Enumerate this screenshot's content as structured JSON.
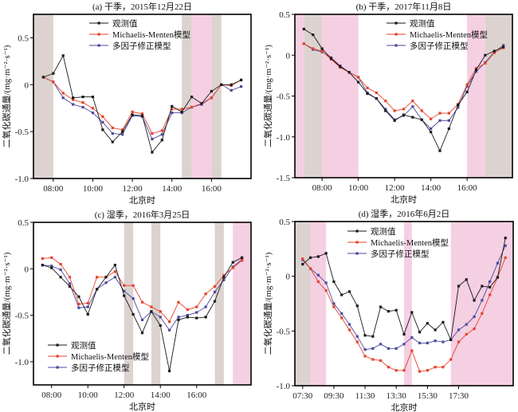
{
  "figure": {
    "y_axis_label": "二氧化碳通量/(mg·m⁻²·s⁻¹)",
    "x_axis_label": "北京时"
  },
  "colors": {
    "observed": "#1a1a1a",
    "mm_model": "#e5432b",
    "multi_model": "#4b4a9c",
    "shade_gray": "#dcd3d0",
    "shade_pink": "#f5cfe2"
  },
  "chart_data": [
    {
      "type": "line",
      "title": "(a) 干季，2015年12月22日",
      "xlabel": "北京时",
      "ylabel": "二氧化碳通量/(mg·m⁻²·s⁻¹)",
      "xlim_hours": [
        7.0,
        18.0
      ],
      "ylim": [
        -1.0,
        0.75
      ],
      "yticks": [
        -1.0,
        -0.5,
        0,
        0.5
      ],
      "ytick_labels": [
        "-1.0",
        "-0.5",
        "0",
        "0.5"
      ],
      "xticks_hours": [
        8,
        10,
        12,
        14,
        16
      ],
      "xtick_labels": [
        "08:00",
        "10:00",
        "12:00",
        "14:00",
        "16:00"
      ],
      "legend_position": "top-center",
      "shading": [
        {
          "from": 7.0,
          "to": 8.0,
          "kind": "gray"
        },
        {
          "from": 14.5,
          "to": 15.0,
          "kind": "gray"
        },
        {
          "from": 15.0,
          "to": 16.0,
          "kind": "pink"
        },
        {
          "from": 16.0,
          "to": 16.5,
          "kind": "gray"
        }
      ],
      "x_hours_start": 7.5,
      "x_step_hours": 0.5,
      "series": [
        {
          "name": "观测值",
          "key": "observed",
          "values": [
            0.08,
            0.12,
            0.31,
            -0.14,
            -0.13,
            -0.13,
            -0.48,
            -0.61,
            -0.5,
            -0.32,
            -0.33,
            -0.72,
            -0.59,
            -0.23,
            -0.29,
            -0.13,
            -0.2,
            -0.07,
            0.0,
            0.0,
            0.05
          ]
        },
        {
          "name": "Michaelis-Menten模型",
          "key": "mm_model",
          "values": [
            0.08,
            0.03,
            -0.09,
            -0.16,
            -0.19,
            -0.25,
            -0.34,
            -0.46,
            -0.48,
            -0.29,
            -0.31,
            -0.52,
            -0.49,
            -0.26,
            -0.26,
            -0.24,
            -0.2,
            -0.14,
            0.0,
            -0.01,
            0.05
          ]
        },
        {
          "name": "多因子修正模型",
          "key": "multi_model",
          "values": [
            0.08,
            0.03,
            -0.14,
            -0.21,
            -0.24,
            -0.3,
            -0.4,
            -0.52,
            -0.53,
            -0.33,
            -0.34,
            -0.58,
            -0.53,
            -0.3,
            -0.3,
            -0.24,
            -0.21,
            -0.14,
            0.0,
            -0.06,
            -0.02
          ]
        }
      ]
    },
    {
      "type": "line",
      "title": "(b) 干季，2017年11月8日",
      "xlabel": "北京时",
      "ylabel": "二氧化碳通量/(mg·m⁻²·s⁻¹)",
      "xlim_hours": [
        6.5,
        18.5
      ],
      "ylim": [
        -1.5,
        0.5
      ],
      "yticks": [
        -1.5,
        -1.0,
        -0.5,
        0,
        0.5
      ],
      "ytick_labels": [
        "-1.5",
        "-1.0",
        "-0.5",
        "0",
        "0.5"
      ],
      "xticks_hours": [
        8,
        10,
        12,
        14,
        16
      ],
      "xtick_labels": [
        "08:00",
        "10:00",
        "12:00",
        "14:00",
        "16:00"
      ],
      "legend_position": "top-center",
      "shading": [
        {
          "from": 6.5,
          "to": 7.0,
          "kind": "pink"
        },
        {
          "from": 7.0,
          "to": 8.0,
          "kind": "gray"
        },
        {
          "from": 8.0,
          "to": 10.0,
          "kind": "pink"
        },
        {
          "from": 16.0,
          "to": 17.0,
          "kind": "pink"
        },
        {
          "from": 17.0,
          "to": 18.5,
          "kind": "gray"
        }
      ],
      "x_hours_start": 7.0,
      "x_step_hours": 0.5,
      "series": [
        {
          "name": "观测值",
          "key": "observed",
          "values": [
            0.32,
            0.25,
            0.08,
            -0.04,
            -0.14,
            -0.21,
            -0.33,
            -0.47,
            -0.53,
            -0.68,
            -0.8,
            -0.73,
            -0.76,
            -0.79,
            -0.94,
            -1.17,
            -0.9,
            -0.61,
            -0.45,
            -0.18,
            0.0,
            0.05,
            0.1
          ]
        },
        {
          "name": "Michaelis-Menten模型",
          "key": "mm_model",
          "values": [
            0.14,
            0.08,
            0.05,
            -0.05,
            -0.15,
            -0.21,
            -0.27,
            -0.4,
            -0.46,
            -0.56,
            -0.68,
            -0.66,
            -0.56,
            -0.68,
            -0.78,
            -0.71,
            -0.71,
            -0.6,
            -0.36,
            -0.16,
            -0.1,
            0.03,
            0.09
          ]
        },
        {
          "name": "多因子修正模型",
          "key": "multi_model",
          "values": [
            0.14,
            0.07,
            0.04,
            -0.03,
            -0.13,
            -0.21,
            -0.27,
            -0.46,
            -0.53,
            -0.66,
            -0.79,
            -0.74,
            -0.63,
            -0.79,
            -0.9,
            -0.8,
            -0.8,
            -0.64,
            -0.38,
            -0.2,
            -0.09,
            0.04,
            0.12
          ]
        }
      ]
    },
    {
      "type": "line",
      "title": "(c) 湿季，2016年3月25日",
      "xlabel": "北京时",
      "ylabel": "二氧化碳通量/(mg·m⁻²·s⁻¹)",
      "xlim_hours": [
        7.0,
        19.0
      ],
      "ylim": [
        -1.25,
        0.5
      ],
      "yticks": [
        -1.0,
        -0.5,
        0,
        0.5
      ],
      "ytick_labels": [
        "-1.0",
        "-0.5",
        "0",
        "0.5"
      ],
      "xticks_hours": [
        8,
        10,
        12,
        14,
        16
      ],
      "xtick_labels": [
        "08:00",
        "10:00",
        "12:00",
        "14:00",
        "16:00"
      ],
      "legend_position": "bottom-left",
      "shading": [
        {
          "from": 12.0,
          "to": 12.5,
          "kind": "gray"
        },
        {
          "from": 13.5,
          "to": 14.0,
          "kind": "gray"
        },
        {
          "from": 17.0,
          "to": 17.5,
          "kind": "gray"
        },
        {
          "from": 18.0,
          "to": 19.0,
          "kind": "pink"
        }
      ],
      "x_hours_start": 7.5,
      "x_step_hours": 0.5,
      "series": [
        {
          "name": "观测值",
          "key": "observed",
          "values": [
            0.04,
            0.01,
            -0.09,
            -0.19,
            -0.3,
            -0.49,
            -0.22,
            -0.09,
            0.04,
            -0.29,
            -0.49,
            -0.69,
            -0.46,
            -0.61,
            -1.1,
            -0.55,
            -0.52,
            -0.53,
            -0.52,
            -0.35,
            -0.09,
            0.07,
            0.12
          ]
        },
        {
          "name": "Michaelis-Menten模型",
          "key": "mm_model",
          "values": [
            0.11,
            0.12,
            0.05,
            -0.09,
            -0.38,
            -0.37,
            -0.09,
            -0.09,
            -0.03,
            -0.18,
            -0.18,
            -0.36,
            -0.41,
            -0.46,
            -0.57,
            -0.36,
            -0.44,
            -0.41,
            -0.27,
            -0.19,
            -0.07,
            0.01,
            0.09
          ]
        },
        {
          "name": "多因子修正模型",
          "key": "multi_model",
          "values": [
            0.04,
            0.03,
            -0.01,
            -0.16,
            -0.42,
            -0.41,
            -0.22,
            -0.15,
            -0.09,
            -0.24,
            -0.32,
            -0.55,
            -0.46,
            -0.52,
            -0.66,
            -0.52,
            -0.5,
            -0.47,
            -0.41,
            -0.25,
            -0.12,
            0.02,
            0.1
          ]
        }
      ]
    },
    {
      "type": "line",
      "title": "(d) 湿季，2016年6月2日",
      "xlabel": "北京时",
      "ylabel": "二氧化碳通量/(mg·m⁻²·s⁻¹)",
      "xlim_hours": [
        7.0,
        21.0
      ],
      "ylim": [
        -1.0,
        0.5
      ],
      "yticks": [
        -1.0,
        -0.5,
        0,
        0.5
      ],
      "ytick_labels": [
        "-1.0",
        "-0.5",
        "0",
        "0.5"
      ],
      "xticks_hours": [
        7.5,
        9.5,
        11.5,
        13.5,
        15.5,
        17.5
      ],
      "xtick_labels": [
        "07:30",
        "09:30",
        "11:30",
        "13:30",
        "15:30",
        "17:30"
      ],
      "legend_position": "top-center",
      "shading": [
        {
          "from": 7.0,
          "to": 8.0,
          "kind": "gray"
        },
        {
          "from": 8.0,
          "to": 9.0,
          "kind": "pink"
        },
        {
          "from": 14.0,
          "to": 14.5,
          "kind": "pink"
        },
        {
          "from": 17.0,
          "to": 21.0,
          "kind": "pink"
        }
      ],
      "x_hours_start": 7.5,
      "x_step_hours": 0.5,
      "series": [
        {
          "name": "观测值",
          "key": "observed",
          "values": [
            0.11,
            0.17,
            0.18,
            0.21,
            -0.05,
            -0.17,
            -0.14,
            -0.27,
            -0.54,
            -0.55,
            -0.28,
            -0.32,
            -0.31,
            -0.53,
            -0.33,
            -0.51,
            -0.43,
            -0.49,
            -0.42,
            -0.58,
            -0.09,
            -0.03,
            -0.22,
            -0.09,
            -0.1,
            -0.01,
            0.35
          ]
        },
        {
          "name": "Michaelis-Menten模型",
          "key": "mm_model",
          "values": [
            0.16,
            0.07,
            -0.05,
            -0.13,
            -0.28,
            -0.38,
            -0.49,
            -0.6,
            -0.73,
            -0.76,
            -0.77,
            -0.83,
            -0.86,
            -0.86,
            -0.68,
            -0.87,
            -0.86,
            -0.83,
            -0.83,
            -0.76,
            -0.6,
            -0.53,
            -0.48,
            -0.34,
            -0.17,
            -0.01,
            0.17
          ]
        },
        {
          "name": "多因子修正模型",
          "key": "multi_model",
          "values": [
            0.15,
            0.07,
            0.01,
            -0.06,
            -0.25,
            -0.34,
            -0.44,
            -0.55,
            -0.67,
            -0.66,
            -0.62,
            -0.66,
            -0.66,
            -0.62,
            -0.56,
            -0.61,
            -0.61,
            -0.59,
            -0.6,
            -0.58,
            -0.49,
            -0.44,
            -0.37,
            -0.22,
            -0.05,
            0.12,
            0.28
          ]
        }
      ]
    }
  ]
}
